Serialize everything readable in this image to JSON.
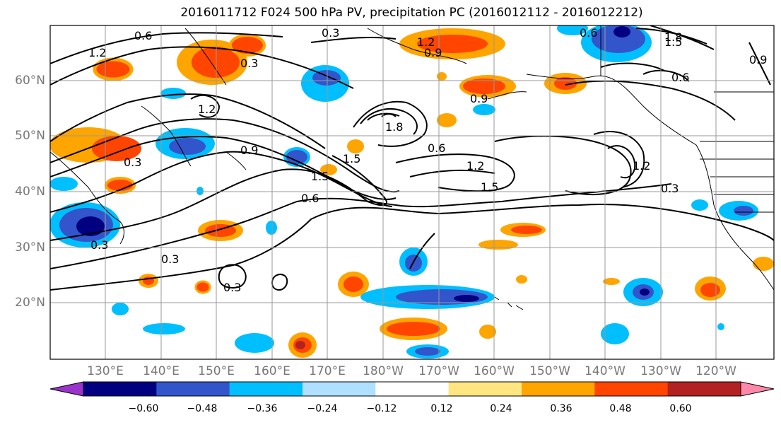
{
  "title": "2016011712 F024 500 hPa PV, precipitation PC (2016012112 - 2016012212)",
  "lat_labels": [
    "60°N",
    "50°N",
    "40°N",
    "30°N",
    "20°N"
  ],
  "lon_labels": [
    "130°E",
    "140°E",
    "150°E",
    "160°E",
    "170°E",
    "180°W",
    "170°W",
    "160°W",
    "150°W",
    "140°W",
    "130°W",
    "120°W"
  ],
  "contour_labels": [
    "0.6",
    "0.3",
    "1.2",
    "0.9",
    "1.2",
    "1.8",
    "1.5",
    "0.9",
    "0.6",
    "1.2",
    "0.3",
    "0.9",
    "0.6",
    "0.9",
    "1.5",
    "1.8",
    "1.5",
    "0.6",
    "1.2",
    "1.5",
    "0.3",
    "1.2",
    "0.3",
    "0.3",
    "0.3",
    "0.6",
    "0.3"
  ],
  "colorbar": {
    "ticks": [
      "−0.60",
      "−0.48",
      "−0.36",
      "−0.24",
      "−0.12",
      "0.12",
      "0.24",
      "0.36",
      "0.48",
      "0.60"
    ],
    "colors": [
      "#9933cc",
      "#000080",
      "#3355cc",
      "#00bfff",
      "#b0e0ff",
      "#ffffff",
      "#ffe680",
      "#ffa500",
      "#ff4500",
      "#b22222",
      "#ff88aa"
    ]
  },
  "legend_colors": {
    "neg_high": "#000080",
    "neg_mid": "#3355cc",
    "neg_low": "#00bfff",
    "neg_faint": "#b0e0ff",
    "pos_faint": "#ffe680",
    "pos_low": "#ffa500",
    "pos_mid": "#ff4500",
    "pos_high": "#b22222"
  }
}
